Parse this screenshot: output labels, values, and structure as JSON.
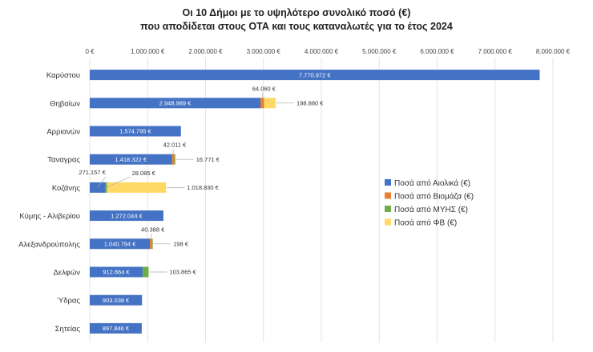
{
  "chart_data": {
    "type": "bar",
    "orientation": "horizontal",
    "stacked": true,
    "title": [
      "Οι 10 Δήμοι με το υψηλότερο συνολικό ποσό (€)",
      "που αποδίδεται στους ΟΤΑ και τους καταναλωτές για το έτος 2024"
    ],
    "categories": [
      "Καρύστου",
      "Θηβαίων",
      "Αρριανών",
      "Ταναγρας",
      "Κοζάνης",
      "Κύμης - Αλιβερίου",
      "Αλεξανδρούπολης",
      "Δελφών",
      "Ύδρας",
      "Σητείας"
    ],
    "series": [
      {
        "name": "Ποσά από Αιολικά (€)",
        "color": "#4472C4",
        "values": [
          7770972,
          2948989,
          1574795,
          1418322,
          271157,
          1272044,
          1040794,
          912864,
          903038,
          897846
        ]
      },
      {
        "name": "Ποσά από Βιομάζα (€)",
        "color": "#ED7D31",
        "values": [
          0,
          64060,
          0,
          42011,
          0,
          0,
          40388,
          0,
          0,
          0
        ]
      },
      {
        "name": "Ποσά από ΜΥΗΣ (€)",
        "color": "#70AD47",
        "values": [
          0,
          0,
          0,
          16771,
          28085,
          0,
          198,
          103865,
          0,
          0
        ]
      },
      {
        "name": "Ποσά από ΦΒ (€)",
        "color": "#FFD966",
        "values": [
          0,
          198880,
          0,
          0,
          1018830,
          0,
          0,
          0,
          0,
          0
        ]
      }
    ],
    "xlim": [
      0,
      8000000
    ],
    "xticks": [
      0,
      1000000,
      2000000,
      3000000,
      4000000,
      5000000,
      6000000,
      7000000,
      8000000
    ],
    "xtick_labels": [
      "0 €",
      "1.000.000 €",
      "2.000.000 €",
      "3.000.000 €",
      "4.000.000 €",
      "5.000.000 €",
      "6.000.000 €",
      "7.000.000 €",
      "8.000.000 €"
    ],
    "grid": true,
    "legend_position": "right",
    "labels": [
      {
        "cat": 0,
        "series": 0,
        "text": "7.770.972 €",
        "place": "inside"
      },
      {
        "cat": 1,
        "series": 0,
        "text": "2.948.989 €",
        "place": "inside"
      },
      {
        "cat": 1,
        "series": 1,
        "text": "64.060 €",
        "place": "above"
      },
      {
        "cat": 1,
        "series": 3,
        "text": "198.880 €",
        "place": "right"
      },
      {
        "cat": 2,
        "series": 0,
        "text": "1.574.795 €",
        "place": "inside"
      },
      {
        "cat": 3,
        "series": 0,
        "text": "1.418.322 €",
        "place": "inside"
      },
      {
        "cat": 3,
        "series": 1,
        "text": "42.011 €",
        "place": "above"
      },
      {
        "cat": 3,
        "series": 2,
        "text": "16.771 €",
        "place": "right"
      },
      {
        "cat": 4,
        "series": 0,
        "text": "271.157 €",
        "place": "above-left"
      },
      {
        "cat": 4,
        "series": 2,
        "text": "28.085 €",
        "place": "above-right"
      },
      {
        "cat": 4,
        "series": 3,
        "text": "1.018.830 €",
        "place": "right"
      },
      {
        "cat": 5,
        "series": 0,
        "text": "1.272.044 €",
        "place": "inside"
      },
      {
        "cat": 6,
        "series": 0,
        "text": "1.040.794 €",
        "place": "inside"
      },
      {
        "cat": 6,
        "series": 1,
        "text": "40.388 €",
        "place": "above"
      },
      {
        "cat": 6,
        "series": 2,
        "text": "198 €",
        "place": "right"
      },
      {
        "cat": 7,
        "series": 0,
        "text": "912.864 €",
        "place": "inside"
      },
      {
        "cat": 7,
        "series": 2,
        "text": "103.865 €",
        "place": "right"
      },
      {
        "cat": 8,
        "series": 0,
        "text": "903.038 €",
        "place": "inside"
      },
      {
        "cat": 9,
        "series": 0,
        "text": "897.846 €",
        "place": "inside"
      }
    ]
  }
}
